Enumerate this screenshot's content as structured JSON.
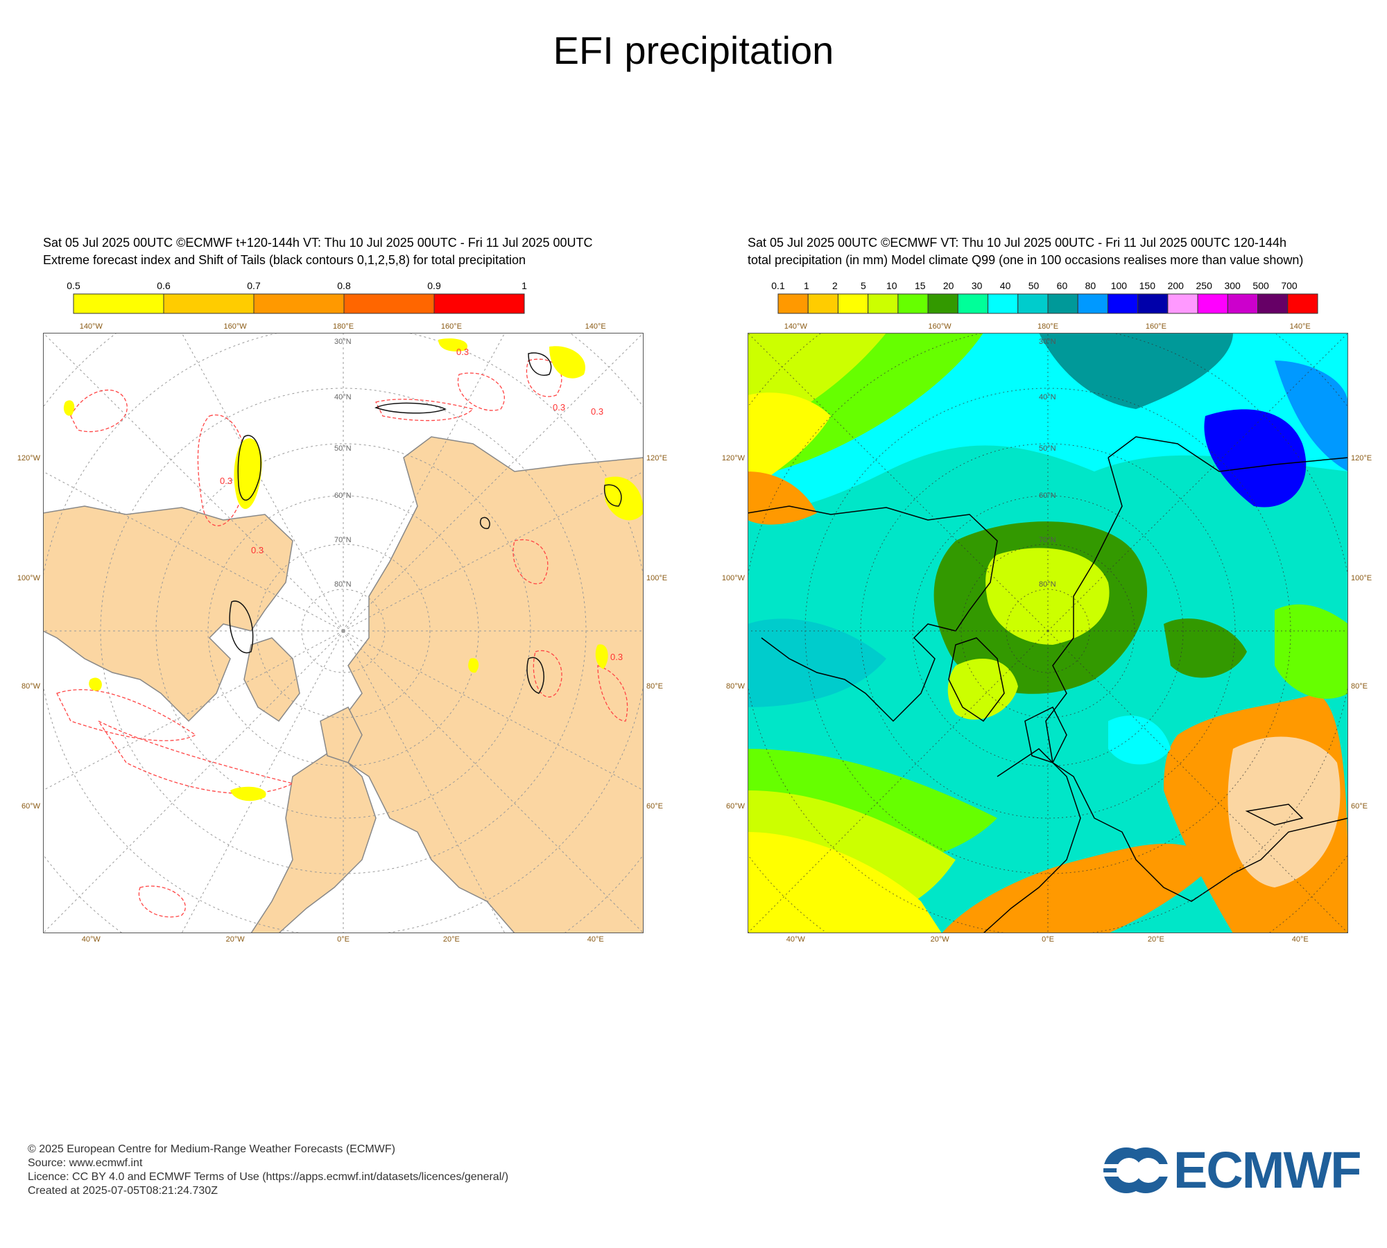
{
  "page": {
    "title": "EFI precipitation"
  },
  "panels": [
    {
      "header_line1": "Sat 05 Jul 2025 00UTC ©ECMWF t+120-144h  VT: Thu 10 Jul 2025 00UTC - Fri 11 Jul 2025 00UTC",
      "header_line2": "Extreme forecast index and Shift of Tails (black contours 0,1,2,5,8) for total precipitation",
      "colorbar": {
        "labels": [
          "0.5",
          "0.6",
          "0.7",
          "0.8",
          "0.9",
          "1"
        ],
        "colors": [
          "#ffff00",
          "#ffcc00",
          "#ff9900",
          "#ff6600",
          "#ff0000"
        ]
      },
      "edge_labels": {
        "top": [
          "140°W",
          "160°W",
          "180°E",
          "160°E",
          "140°E"
        ],
        "bottom": [
          "40°W",
          "20°W",
          "0°E",
          "20°E",
          "40°E"
        ],
        "left": [
          "120°W",
          "100°W",
          "80°W",
          "60°W"
        ],
        "right": [
          "120°E",
          "100°E",
          "80°E",
          "60°E"
        ]
      },
      "lat_labels": [
        "30°N",
        "40°N",
        "50°N",
        "60°N",
        "70°N",
        "80°N"
      ],
      "contour_labels": [
        "0.3",
        "0.3",
        "0.3",
        "0.3",
        "0.3",
        "0.3"
      ]
    },
    {
      "header_line1": "Sat 05 Jul 2025 00UTC ©ECMWF VT: Thu 10 Jul 2025 00UTC - Fri 11 Jul 2025 00UTC   120-144h",
      "header_line2": "total precipitation (in mm)  Model climate Q99 (one in 100 occasions realises more than value shown)",
      "colorbar": {
        "labels": [
          "0.1",
          "1",
          "2",
          "5",
          "10",
          "15",
          "20",
          "30",
          "40",
          "50",
          "60",
          "80",
          "100",
          "150",
          "200",
          "250",
          "300",
          "500",
          "700"
        ],
        "colors": [
          "#ff9900",
          "#ffcc00",
          "#ffff00",
          "#ccff00",
          "#66ff00",
          "#339900",
          "#00ff99",
          "#00ffff",
          "#00cccc",
          "#009999",
          "#0099ff",
          "#0000ff",
          "#0000aa",
          "#ff99ff",
          "#ff00ff",
          "#cc00cc",
          "#660066",
          "#ff0000"
        ]
      },
      "edge_labels": {
        "top": [
          "140°W",
          "160°W",
          "180°E",
          "160°E",
          "140°E"
        ],
        "bottom": [
          "40°W",
          "20°W",
          "0°E",
          "20°E",
          "40°E"
        ],
        "left": [
          "120°W",
          "100°W",
          "80°W",
          "60°W"
        ],
        "right": [
          "120°E",
          "100°E",
          "80°E",
          "60°E"
        ]
      },
      "lat_labels": [
        "30°N",
        "40°N",
        "50°N",
        "60°N",
        "70°N",
        "80°N"
      ]
    }
  ],
  "footer": {
    "line1": "© 2025 European Centre for Medium-Range Weather Forecasts (ECMWF)",
    "line2": "Source: www.ecmwf.int",
    "line3": "Licence: CC BY 4.0 and ECMWF Terms of Use (https://apps.ecmwf.int/datasets/licences/general/)",
    "line4": "Created at 2025-07-05T08:21:24.730Z"
  },
  "logo": {
    "text": "ECMWF",
    "color": "#1f5f9a"
  }
}
